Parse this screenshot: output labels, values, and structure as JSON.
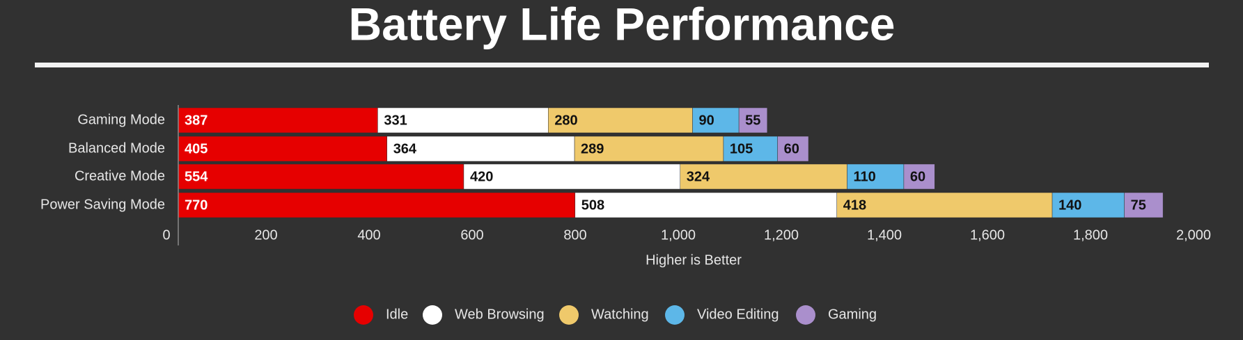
{
  "chart_data": {
    "type": "stacked-horizontal-bar",
    "title": "Battery Life Performance",
    "x_label": "Higher is Better",
    "categories": [
      "Gaming Mode",
      "Balanced Mode",
      "Creative Mode",
      "Power Saving Mode"
    ],
    "series": [
      {
        "name": "Idle",
        "color": "#e60000",
        "values": [
          387,
          405,
          554,
          770
        ]
      },
      {
        "name": "Web Browsing",
        "color": "#ffffff",
        "values": [
          331,
          364,
          420,
          508
        ]
      },
      {
        "name": "Watching",
        "color": "#efc96b",
        "values": [
          280,
          289,
          324,
          418
        ]
      },
      {
        "name": "Video Editing",
        "color": "#5db7e8",
        "values": [
          90,
          105,
          110,
          140
        ]
      },
      {
        "name": "Gaming",
        "color": "#aa8fcc",
        "values": [
          55,
          60,
          60,
          75
        ]
      }
    ],
    "xlim": [
      0,
      2000
    ],
    "xticks": [
      0,
      200,
      400,
      600,
      800,
      {
        "value": 1000,
        "label": "1,000"
      },
      {
        "value": 1200,
        "label": "1,200"
      },
      {
        "value": 1400,
        "label": "1,400"
      },
      {
        "value": 1600,
        "label": "1,600"
      },
      {
        "value": 1800,
        "label": "1,800"
      },
      {
        "value": 2000,
        "label": "2,000"
      }
    ],
    "grid": false
  }
}
